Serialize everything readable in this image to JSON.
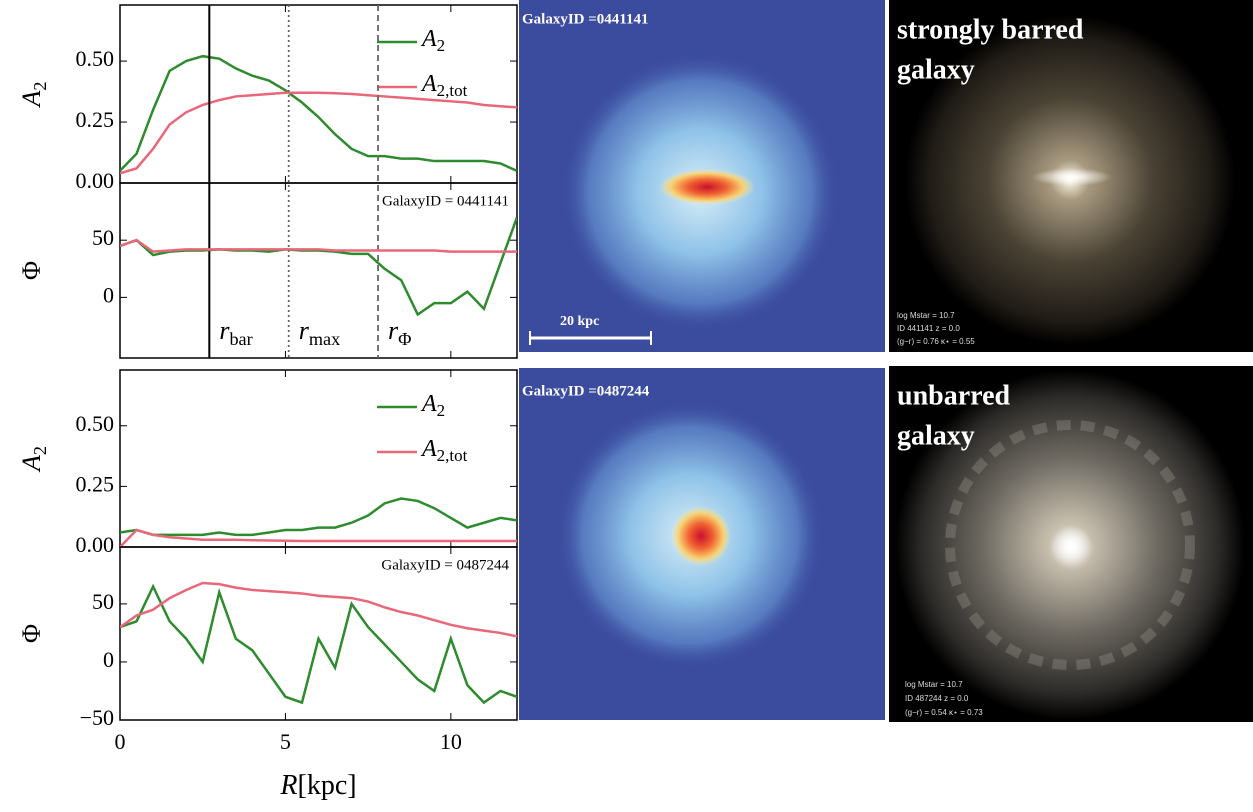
{
  "chart_data": [
    {
      "type": "line",
      "ylabel": {
        "symbol": "A",
        "subscript": "2"
      },
      "x": [
        0,
        0.5,
        1,
        1.5,
        2,
        2.5,
        3,
        3.5,
        4,
        4.5,
        5,
        5.5,
        6,
        6.5,
        7,
        7.5,
        8,
        8.5,
        9,
        9.5,
        10,
        10.5,
        11,
        11.5,
        12
      ],
      "series": [
        {
          "name": "A",
          "subscript": "2",
          "color": "#2e8b2e",
          "values": [
            0.05,
            0.12,
            0.3,
            0.46,
            0.5,
            0.52,
            0.51,
            0.47,
            0.44,
            0.42,
            0.38,
            0.33,
            0.27,
            0.2,
            0.14,
            0.11,
            0.11,
            0.1,
            0.1,
            0.09,
            0.09,
            0.09,
            0.09,
            0.08,
            0.05
          ]
        },
        {
          "name": "A",
          "subscript": "2,tot",
          "color": "#e8687a",
          "values": [
            0.04,
            0.06,
            0.14,
            0.24,
            0.29,
            0.32,
            0.34,
            0.355,
            0.36,
            0.365,
            0.37,
            0.37,
            0.37,
            0.368,
            0.365,
            0.36,
            0.355,
            0.35,
            0.345,
            0.34,
            0.335,
            0.33,
            0.32,
            0.315,
            0.31
          ]
        }
      ],
      "xlim": [
        0,
        12
      ],
      "xticks": [
        0,
        5,
        10
      ],
      "ylim": [
        0,
        0.73
      ],
      "yticks": [
        {
          "value": 0,
          "label": "0.00"
        },
        {
          "value": 0.25,
          "label": "0.25"
        },
        {
          "value": 0.5,
          "label": "0.50"
        }
      ],
      "legend": "upper right"
    },
    {
      "type": "line",
      "ylabel": {
        "symbol": "Φ"
      },
      "annotation": "GalaxyID = 0441141",
      "x": [
        0,
        0.5,
        1,
        1.5,
        2,
        2.5,
        3,
        3.5,
        4,
        4.5,
        5,
        5.5,
        6,
        6.5,
        7,
        7.5,
        8,
        8.5,
        9,
        9.5,
        10,
        10.5,
        11,
        11.5,
        12
      ],
      "series": [
        {
          "color": "#2e8b2e",
          "values": [
            45,
            50,
            37,
            40,
            41,
            41,
            42,
            41,
            41,
            40,
            42,
            41,
            41,
            40,
            38,
            38,
            25,
            15,
            -15,
            -5,
            -5,
            5,
            -10,
            30,
            70
          ]
        },
        {
          "color": "#e8687a",
          "values": [
            45,
            50,
            40,
            41,
            42,
            42,
            42,
            42,
            42,
            42,
            42,
            42,
            42,
            41,
            41,
            41,
            41,
            41,
            41,
            41,
            40,
            40,
            40,
            40,
            40
          ]
        }
      ],
      "vlines": [
        {
          "x": 2.7,
          "symbol": "r",
          "subscript": "bar",
          "style": "solid"
        },
        {
          "x": 5.1,
          "symbol": "r",
          "subscript": "max",
          "style": "dotted"
        },
        {
          "x": 7.8,
          "symbol": "r",
          "subscript": "Φ",
          "style": "dashed"
        }
      ],
      "xlim": [
        0,
        12
      ],
      "xticks": [
        0,
        5,
        10
      ],
      "ylim": [
        -53,
        100
      ],
      "yticks": [
        0,
        50
      ]
    },
    {
      "type": "line",
      "ylabel": {
        "symbol": "A",
        "subscript": "2"
      },
      "x": [
        0,
        0.5,
        1,
        1.5,
        2,
        2.5,
        3,
        3.5,
        4,
        4.5,
        5,
        5.5,
        6,
        6.5,
        7,
        7.5,
        8,
        8.5,
        9,
        9.5,
        10,
        10.5,
        11,
        11.5,
        12
      ],
      "series": [
        {
          "name": "A",
          "subscript": "2",
          "color": "#2e8b2e",
          "values": [
            0.06,
            0.07,
            0.05,
            0.05,
            0.05,
            0.05,
            0.06,
            0.05,
            0.05,
            0.06,
            0.07,
            0.07,
            0.08,
            0.08,
            0.1,
            0.13,
            0.18,
            0.2,
            0.19,
            0.16,
            0.12,
            0.08,
            0.1,
            0.12,
            0.11
          ]
        },
        {
          "name": "A",
          "subscript": "2,tot",
          "color": "#e8687a",
          "values": [
            0.0,
            0.07,
            0.05,
            0.04,
            0.035,
            0.03,
            0.03,
            0.03,
            0.028,
            0.027,
            0.026,
            0.025,
            0.025,
            0.025,
            0.025,
            0.025,
            0.025,
            0.025,
            0.025,
            0.025,
            0.025,
            0.025,
            0.025,
            0.025,
            0.025
          ]
        }
      ],
      "xlim": [
        0,
        12
      ],
      "xticks": [
        0,
        5,
        10
      ],
      "ylim": [
        0,
        0.73
      ],
      "yticks": [
        {
          "value": 0,
          "label": "0.00"
        },
        {
          "value": 0.25,
          "label": "0.25"
        },
        {
          "value": 0.5,
          "label": "0.50"
        }
      ],
      "legend": "upper right"
    },
    {
      "type": "line",
      "ylabel": {
        "symbol": "Φ"
      },
      "annotation": "GalaxyID = 0487244",
      "xlabel": {
        "symbol": "R",
        "unit": "[kpc]"
      },
      "x": [
        0,
        0.5,
        1,
        1.5,
        2,
        2.5,
        3,
        3.5,
        4,
        4.5,
        5,
        5.5,
        6,
        6.5,
        7,
        7.5,
        8,
        8.5,
        9,
        9.5,
        10,
        10.5,
        11,
        11.5,
        12
      ],
      "series": [
        {
          "color": "#2e8b2e",
          "values": [
            30,
            35,
            65,
            35,
            20,
            0,
            60,
            20,
            10,
            -10,
            -30,
            -35,
            20,
            -5,
            50,
            30,
            15,
            0,
            -15,
            -25,
            20,
            -20,
            -35,
            -25,
            -30
          ]
        },
        {
          "color": "#e8687a",
          "values": [
            30,
            40,
            45,
            55,
            62,
            68,
            67,
            64,
            62,
            61,
            60,
            59,
            57,
            56,
            55,
            52,
            47,
            43,
            40,
            36,
            32,
            29,
            27,
            25,
            22
          ]
        }
      ],
      "xlim": [
        0,
        12
      ],
      "xticks": [
        0,
        5,
        10
      ],
      "ylim": [
        -50,
        99
      ],
      "yticks": [
        {
          "value": -50,
          "label": "−50"
        },
        0,
        50
      ]
    }
  ],
  "images": [
    {
      "title": "GalaxyID =0441141",
      "scale_bar": "20 kpc"
    },
    {
      "title": "GalaxyID =0487244"
    },
    {
      "title_lines": [
        "strongly barred",
        "galaxy"
      ],
      "info": [
        "log Mstar = 10.7",
        "ID 441141 z = 0.0",
        "(g−r) = 0.76 κ⋆ = 0.55"
      ]
    },
    {
      "title_lines": [
        "unbarred",
        "galaxy"
      ],
      "info": [
        "log Mstar = 10.7",
        "ID 487244 z = 0.0",
        "(g−r) = 0.54 κ⋆ = 0.73"
      ]
    }
  ]
}
